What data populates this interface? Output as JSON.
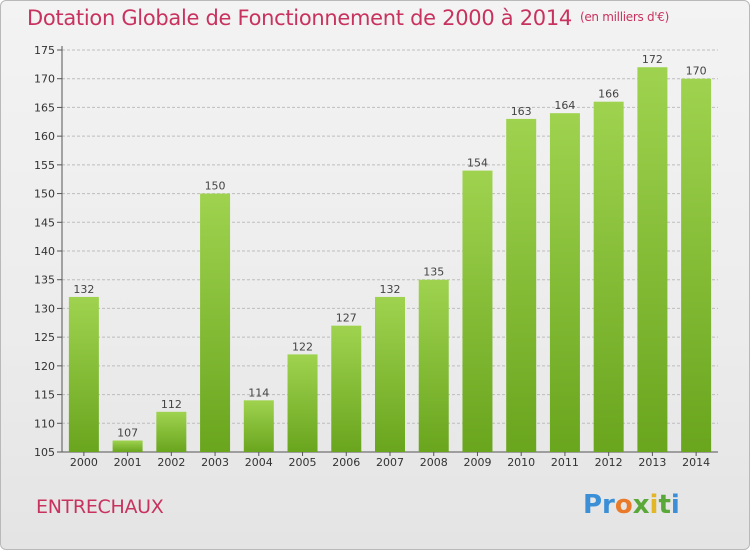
{
  "header": {
    "title": "Dotation Globale de Fonctionnement de 2000 à 2014",
    "subtitle": "(en milliers d'€)"
  },
  "footer": {
    "city": "ENTRECHAUX",
    "logo": "Proxiti"
  },
  "colors": {
    "bar_light": "#9fd34f",
    "bar_dark": "#6aa51e",
    "title": "#c8325e",
    "grid": "#bdbdbd"
  },
  "chart_data": {
    "type": "bar",
    "categories": [
      "2000",
      "2001",
      "2002",
      "2003",
      "2004",
      "2005",
      "2006",
      "2007",
      "2008",
      "2009",
      "2010",
      "2011",
      "2012",
      "2013",
      "2014"
    ],
    "values": [
      132,
      107,
      112,
      150,
      114,
      122,
      127,
      132,
      135,
      154,
      163,
      164,
      166,
      172,
      170
    ],
    "title": "Dotation Globale de Fonctionnement de 2000 à 2014",
    "subtitle": "(en milliers d'€)",
    "xlabel": "",
    "ylabel": "",
    "ylim": [
      105,
      175
    ],
    "yticks": [
      105,
      110,
      115,
      120,
      125,
      130,
      135,
      140,
      145,
      150,
      155,
      160,
      165,
      170,
      175
    ],
    "grid": true,
    "legend": "none"
  }
}
